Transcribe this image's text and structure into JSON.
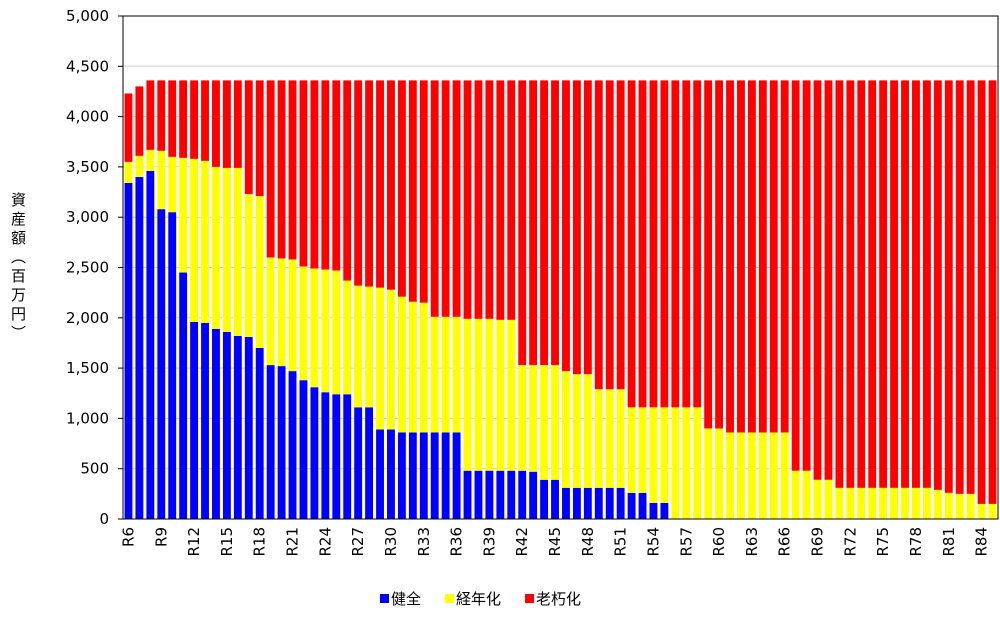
{
  "chart_data": {
    "type": "stacked_bar",
    "y_label": "資産額（百万円）",
    "categories": [
      "R6",
      null,
      null,
      "R9",
      null,
      null,
      "R12",
      null,
      null,
      "R15",
      null,
      null,
      "R18",
      null,
      null,
      "R21",
      null,
      null,
      "R24",
      null,
      null,
      "R27",
      null,
      null,
      "R30",
      null,
      null,
      "R33",
      null,
      null,
      "R36",
      null,
      null,
      "R39",
      null,
      null,
      "R42",
      null,
      null,
      "R45",
      null,
      null,
      "R48",
      null,
      null,
      "R51",
      null,
      null,
      "R54",
      null,
      null,
      "R57",
      null,
      null,
      "R60",
      null,
      null,
      "R63",
      null,
      null,
      "R66",
      null,
      null,
      "R69",
      null,
      null,
      "R72",
      null,
      null,
      "R75",
      null,
      null,
      "R78",
      null,
      null,
      "R81",
      null,
      null,
      "R84",
      null
    ],
    "series": [
      {
        "name": "健全",
        "color": "#0000ff",
        "values": [
          3340,
          3400,
          3460,
          3080,
          3050,
          2450,
          1960,
          1950,
          1890,
          1860,
          1820,
          1810,
          1700,
          1530,
          1520,
          1470,
          1380,
          1310,
          1260,
          1240,
          1240,
          1110,
          1110,
          890,
          890,
          860,
          860,
          860,
          860,
          860,
          860,
          480,
          480,
          480,
          480,
          480,
          480,
          470,
          390,
          390,
          310,
          310,
          310,
          310,
          310,
          310,
          260,
          260,
          160,
          160,
          0,
          0,
          0,
          0,
          0,
          0,
          0,
          0,
          0,
          0,
          0,
          0,
          0,
          0,
          0,
          0,
          0,
          0,
          0,
          0,
          0,
          0,
          0,
          0,
          0,
          0,
          0,
          0,
          0,
          0
        ]
      },
      {
        "name": "経年化",
        "color": "#ffff00",
        "values": [
          210,
          210,
          210,
          580,
          550,
          1140,
          1620,
          1610,
          1610,
          1630,
          1670,
          1420,
          1510,
          1070,
          1070,
          1110,
          1130,
          1180,
          1220,
          1230,
          1130,
          1210,
          1200,
          1410,
          1390,
          1350,
          1300,
          1290,
          1150,
          1150,
          1150,
          1510,
          1510,
          1510,
          1500,
          1500,
          1050,
          1060,
          1140,
          1140,
          1160,
          1130,
          1130,
          980,
          980,
          980,
          850,
          850,
          950,
          950,
          1110,
          1110,
          1110,
          900,
          900,
          860,
          860,
          860,
          860,
          860,
          860,
          480,
          480,
          390,
          390,
          310,
          310,
          310,
          310,
          310,
          310,
          310,
          310,
          310,
          290,
          260,
          250,
          250,
          150,
          150
        ]
      },
      {
        "name": "老朽化",
        "color": "#ff0000",
        "values": [
          680,
          690,
          690,
          700,
          760,
          770,
          780,
          800,
          860,
          870,
          870,
          1130,
          1150,
          1760,
          1770,
          1780,
          1850,
          1870,
          1880,
          1890,
          1990,
          2040,
          2050,
          2060,
          2080,
          2150,
          2200,
          2210,
          2350,
          2350,
          2350,
          2370,
          2370,
          2370,
          2380,
          2380,
          2830,
          2830,
          2830,
          2830,
          2890,
          2920,
          2920,
          3070,
          3070,
          3070,
          3250,
          3250,
          3250,
          3250,
          3250,
          3250,
          3250,
          3460,
          3460,
          3500,
          3500,
          3500,
          3500,
          3500,
          3500,
          3880,
          3880,
          3970,
          3970,
          4050,
          4050,
          4050,
          4050,
          4050,
          4050,
          4050,
          4050,
          4050,
          4070,
          4100,
          4110,
          4110,
          4210,
          4210
        ]
      }
    ],
    "ylim": [
      0,
      5000
    ],
    "yticks": [
      0,
      500,
      {
        "value": 1000,
        "label": "1,000"
      },
      {
        "value": 1500,
        "label": "1,500"
      },
      {
        "value": 2000,
        "label": "2,000"
      },
      {
        "value": 2500,
        "label": "2,500"
      },
      {
        "value": 3000,
        "label": "3,000"
      },
      {
        "value": 3500,
        "label": "3,500"
      },
      {
        "value": 4000,
        "label": "4,000"
      },
      {
        "value": 4500,
        "label": "4,500"
      },
      {
        "value": 5000,
        "label": "5,000"
      }
    ],
    "grid": true,
    "legend": "bottom"
  }
}
